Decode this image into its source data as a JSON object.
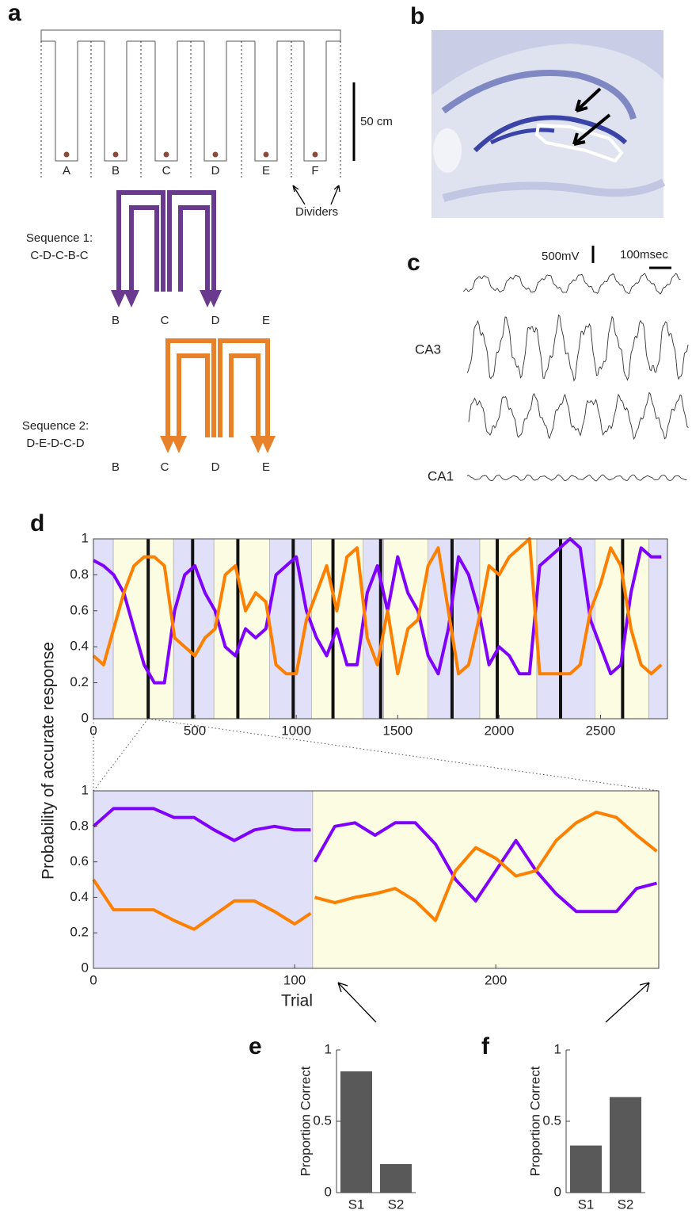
{
  "panel_labels": [
    "a",
    "b",
    "c",
    "d",
    "e",
    "f"
  ],
  "maze": {
    "arm_labels": [
      "A",
      "B",
      "C",
      "D",
      "E",
      "F"
    ],
    "scale_label": "50 cm",
    "dividers_label": "Dividers"
  },
  "sequence_1": {
    "title": "Sequence 1:",
    "order": "C-D-C-B-C",
    "arm_labels": [
      "B",
      "C",
      "D",
      "E"
    ]
  },
  "sequence_2": {
    "title": "Sequence 2:",
    "order": "D-E-D-C-D",
    "arm_labels": [
      "B",
      "C",
      "D",
      "E"
    ]
  },
  "recordings": {
    "voltage_scale": "500mV",
    "time_scale": "100msec",
    "labels": [
      "CA3",
      "CA1"
    ]
  },
  "chart_data": [
    {
      "type": "line",
      "xlim": [
        0,
        2830
      ],
      "ylim": [
        0,
        1
      ],
      "xticks": [
        0,
        500,
        1000,
        1500,
        2000,
        2500
      ],
      "yticks": [
        0,
        0.2,
        0.4,
        0.6,
        0.8,
        1
      ],
      "blocks": [
        {
          "x": [
            0,
            98
          ],
          "color": "#e0e0f8"
        },
        {
          "x": [
            98,
            395
          ],
          "color": "#fcfce2"
        },
        {
          "x": [
            395,
            594
          ],
          "color": "#e0e0f8"
        },
        {
          "x": [
            594,
            868
          ],
          "color": "#fcfce2"
        },
        {
          "x": [
            868,
            1075
          ],
          "color": "#e0e0f8"
        },
        {
          "x": [
            1075,
            1330
          ],
          "color": "#fcfce2"
        },
        {
          "x": [
            1330,
            1431
          ],
          "color": "#e0e0f8"
        },
        {
          "x": [
            1431,
            1650
          ],
          "color": "#fcfce2"
        },
        {
          "x": [
            1650,
            1905
          ],
          "color": "#e0e0f8"
        },
        {
          "x": [
            1905,
            2186
          ],
          "color": "#fcfce2"
        },
        {
          "x": [
            2186,
            2472
          ],
          "color": "#e0e0f8"
        },
        {
          "x": [
            2472,
            2738
          ],
          "color": "#fcfce2"
        },
        {
          "x": [
            2738,
            2830
          ],
          "color": "#e0e0f8"
        }
      ],
      "switch_trials": [
        270,
        489,
        712,
        985,
        1181,
        1416,
        1768,
        1991,
        2303,
        2609
      ],
      "x": [
        0,
        50,
        100,
        150,
        200,
        250,
        300,
        350,
        400,
        450,
        500,
        550,
        600,
        650,
        700,
        750,
        800,
        850,
        900,
        950,
        1000,
        1050,
        1100,
        1150,
        1200,
        1250,
        1300,
        1350,
        1400,
        1450,
        1500,
        1550,
        1600,
        1650,
        1700,
        1750,
        1800,
        1850,
        1900,
        1950,
        2000,
        2050,
        2100,
        2150,
        2200,
        2250,
        2300,
        2350,
        2400,
        2450,
        2500,
        2550,
        2600,
        2650,
        2700,
        2750,
        2800
      ],
      "series": [
        {
          "color": "#8000ff",
          "values": [
            0.88,
            0.85,
            0.8,
            0.7,
            0.5,
            0.3,
            0.2,
            0.2,
            0.6,
            0.8,
            0.85,
            0.7,
            0.6,
            0.4,
            0.35,
            0.5,
            0.45,
            0.5,
            0.8,
            0.85,
            0.9,
            0.6,
            0.45,
            0.35,
            0.5,
            0.3,
            0.3,
            0.7,
            0.85,
            0.6,
            0.9,
            0.7,
            0.6,
            0.35,
            0.25,
            0.5,
            0.9,
            0.8,
            0.6,
            0.3,
            0.4,
            0.35,
            0.25,
            0.25,
            0.85,
            0.9,
            0.95,
            1,
            0.95,
            0.55,
            0.4,
            0.25,
            0.3,
            0.7,
            0.95,
            0.9,
            0.9
          ]
        },
        {
          "color": "#ff8000",
          "values": [
            0.35,
            0.3,
            0.5,
            0.7,
            0.85,
            0.9,
            0.9,
            0.85,
            0.45,
            0.4,
            0.35,
            0.45,
            0.5,
            0.8,
            0.85,
            0.6,
            0.7,
            0.65,
            0.3,
            0.25,
            0.25,
            0.55,
            0.7,
            0.85,
            0.6,
            0.9,
            0.95,
            0.45,
            0.3,
            0.6,
            0.25,
            0.5,
            0.55,
            0.85,
            0.95,
            0.6,
            0.25,
            0.3,
            0.55,
            0.85,
            0.8,
            0.9,
            0.95,
            1,
            0.25,
            0.25,
            0.25,
            0.25,
            0.3,
            0.6,
            0.75,
            0.95,
            0.85,
            0.5,
            0.3,
            0.25,
            0.3
          ]
        }
      ]
    },
    {
      "type": "line",
      "ylabel": "Probability of accurate response",
      "xlabel": "Trial",
      "xlim": [
        0,
        281
      ],
      "ylim": [
        0,
        1
      ],
      "xticks": [
        0,
        100,
        200
      ],
      "yticks": [
        0,
        0.2,
        0.4,
        0.6,
        0.8,
        1
      ],
      "blocks": [
        {
          "x": [
            0,
            109
          ],
          "color": "#e0e0f8"
        },
        {
          "x": [
            109,
            281
          ],
          "color": "#fcfce2"
        }
      ],
      "x": [
        0,
        10,
        20,
        30,
        40,
        50,
        60,
        70,
        80,
        90,
        100,
        108,
        109,
        110,
        120,
        130,
        140,
        150,
        160,
        170,
        180,
        190,
        200,
        210,
        220,
        230,
        240,
        250,
        260,
        270,
        280
      ],
      "series": [
        {
          "color": "#8000ff",
          "values": [
            0.8,
            0.9,
            0.9,
            0.9,
            0.85,
            0.85,
            0.78,
            0.72,
            0.78,
            0.8,
            0.78,
            0.78,
            null,
            0.6,
            0.8,
            0.82,
            0.75,
            0.82,
            0.82,
            0.7,
            0.5,
            0.38,
            0.55,
            0.72,
            0.55,
            0.42,
            0.32,
            0.32,
            0.32,
            0.45,
            0.48
          ]
        },
        {
          "color": "#ff8000",
          "values": [
            0.5,
            0.33,
            0.33,
            0.33,
            0.27,
            0.22,
            0.3,
            0.38,
            0.38,
            0.32,
            0.25,
            0.31,
            null,
            0.4,
            0.37,
            0.4,
            0.42,
            0.45,
            0.38,
            0.27,
            0.55,
            0.68,
            0.62,
            0.52,
            0.55,
            0.72,
            0.82,
            0.88,
            0.85,
            0.75,
            0.66
          ]
        }
      ]
    },
    {
      "type": "bar",
      "ylabel": "Proportion Correct",
      "categories": [
        "S1",
        "S2"
      ],
      "values": [
        0.85,
        0.2
      ],
      "color": "#595959",
      "ylim": [
        0,
        1
      ],
      "yticks": [
        0,
        0.5,
        1
      ]
    },
    {
      "type": "bar",
      "ylabel": "Proportion Correct",
      "categories": [
        "S1",
        "S2"
      ],
      "values": [
        0.33,
        0.67
      ],
      "color": "#595959",
      "ylim": [
        0,
        1
      ],
      "yticks": [
        0,
        0.5,
        1
      ]
    }
  ]
}
